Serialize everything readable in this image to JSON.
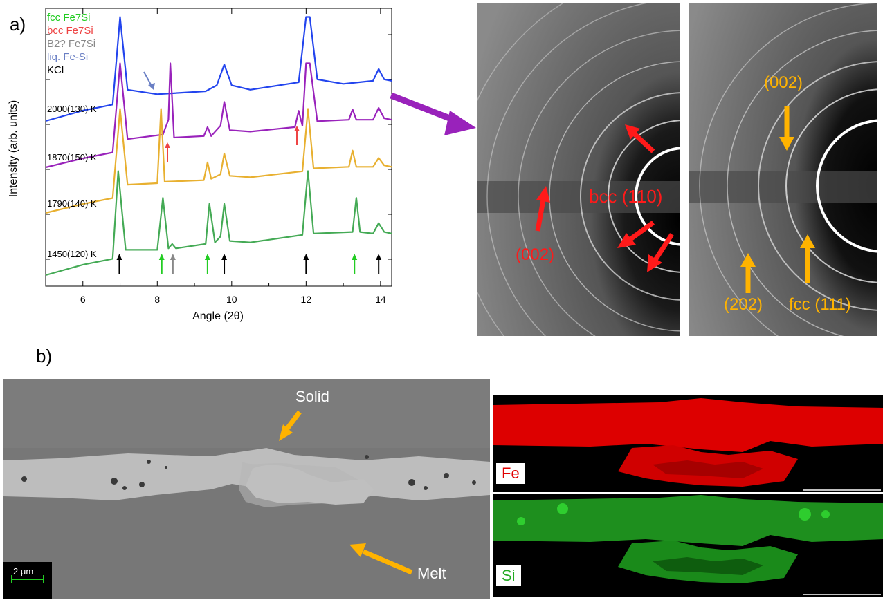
{
  "panel_a_label": "a)",
  "panel_b_label": "b)",
  "chart_data": {
    "type": "line",
    "xlabel": "Angle (2θ)",
    "ylabel": "Intensity (arb. units)",
    "xlim": [
      5,
      14.3
    ],
    "xticks": [
      "6",
      "8",
      "10",
      "12",
      "14"
    ],
    "legend": [
      {
        "name": "fcc Fe7Si",
        "color": "#22cc22"
      },
      {
        "name": "bcc Fe7Si",
        "color": "#ee4444"
      },
      {
        "name": "B2? Fe7Si",
        "color": "#888888"
      },
      {
        "name": "liq. Fe-Si",
        "color": "#6a7fc4"
      },
      {
        "name": "KCl",
        "color": "#000000"
      }
    ],
    "series": [
      {
        "name": "2000(130) K",
        "color": "#2244ee",
        "offset": 3,
        "x": [
          5.0,
          6.0,
          6.8,
          7.0,
          7.2,
          8.0,
          9.3,
          9.6,
          9.8,
          10.0,
          10.5,
          11.8,
          12.0,
          12.1,
          12.3,
          13.0,
          13.8,
          13.95,
          14.1,
          14.3
        ],
        "y": [
          0.0,
          0.35,
          0.55,
          3.5,
          1.05,
          0.9,
          1.0,
          1.2,
          1.9,
          1.2,
          1.05,
          1.3,
          3.5,
          3.5,
          1.4,
          1.25,
          1.35,
          1.75,
          1.4,
          1.35
        ]
      },
      {
        "name": "1870(150) K",
        "color": "#9922bb",
        "offset": 2,
        "x": [
          5.0,
          6.0,
          6.8,
          7.0,
          7.2,
          8.15,
          8.3,
          8.35,
          8.45,
          9.25,
          9.35,
          9.45,
          9.7,
          9.8,
          9.95,
          10.5,
          11.7,
          11.8,
          11.9,
          12.0,
          12.1,
          12.3,
          13.15,
          13.25,
          13.35,
          13.8,
          13.95,
          14.1,
          14.3
        ],
        "y": [
          0.0,
          0.3,
          0.5,
          3.5,
          0.95,
          1.1,
          1.6,
          3.5,
          1.0,
          1.05,
          1.35,
          1.05,
          1.4,
          2.2,
          1.25,
          1.2,
          1.35,
          1.9,
          1.4,
          3.5,
          3.5,
          1.55,
          1.6,
          1.95,
          1.6,
          1.6,
          2.0,
          1.65,
          1.6
        ]
      },
      {
        "name": "1790(140) K",
        "color": "#e8b030",
        "offset": 1,
        "x": [
          5.0,
          6.0,
          6.8,
          7.0,
          7.2,
          8.0,
          8.1,
          8.2,
          9.25,
          9.35,
          9.45,
          9.7,
          9.8,
          9.95,
          10.5,
          11.9,
          12.05,
          12.2,
          13.15,
          13.25,
          13.35,
          13.8,
          13.95,
          14.1,
          14.3
        ],
        "y": [
          0.0,
          0.3,
          0.5,
          3.5,
          0.95,
          1.0,
          3.5,
          1.05,
          1.1,
          1.7,
          1.15,
          1.3,
          2.0,
          1.25,
          1.2,
          1.4,
          3.5,
          1.5,
          1.55,
          2.1,
          1.55,
          1.55,
          1.85,
          1.6,
          1.55
        ]
      },
      {
        "name": "1450(120) K",
        "color": "#44aa55",
        "offset": 0,
        "x": [
          5.0,
          6.0,
          6.8,
          6.95,
          7.15,
          8.0,
          8.15,
          8.3,
          8.4,
          8.5,
          9.3,
          9.4,
          9.55,
          9.7,
          9.8,
          9.95,
          10.5,
          11.9,
          12.05,
          12.2,
          13.25,
          13.35,
          13.45,
          13.8,
          13.95,
          14.1,
          14.3
        ],
        "y": [
          0.0,
          0.35,
          0.55,
          3.5,
          0.85,
          0.85,
          2.6,
          0.9,
          1.05,
          0.9,
          1.05,
          2.4,
          1.1,
          1.3,
          2.4,
          1.15,
          1.1,
          1.35,
          3.5,
          1.4,
          1.45,
          2.6,
          1.45,
          1.4,
          1.75,
          1.45,
          1.4
        ]
      }
    ],
    "reflection_markers": [
      {
        "x": 6.98,
        "phase": "KCl"
      },
      {
        "x": 8.12,
        "phase": "fcc Fe7Si"
      },
      {
        "x": 8.42,
        "phase": "B2? Fe7Si"
      },
      {
        "x": 9.35,
        "phase": "fcc Fe7Si"
      },
      {
        "x": 9.8,
        "phase": "KCl"
      },
      {
        "x": 12.0,
        "phase": "KCl"
      },
      {
        "x": 13.3,
        "phase": "fcc Fe7Si"
      },
      {
        "x": 13.95,
        "phase": "KCl"
      }
    ]
  },
  "diffraction_images": {
    "left": {
      "labels": [
        "bcc (110)",
        "(002)"
      ],
      "label_color": "#ff1a1a"
    },
    "right": {
      "labels": [
        "(002)",
        "(202)",
        "fcc (111)"
      ],
      "label_color": "#ffb300"
    }
  },
  "sem": {
    "labels": [
      "Solid",
      "Melt"
    ],
    "scale_bar": "2 μm"
  },
  "maps": {
    "fe_label": "Fe",
    "si_label": "Si",
    "fe_label_color": "#e00000",
    "si_label_color": "#22aa22"
  }
}
